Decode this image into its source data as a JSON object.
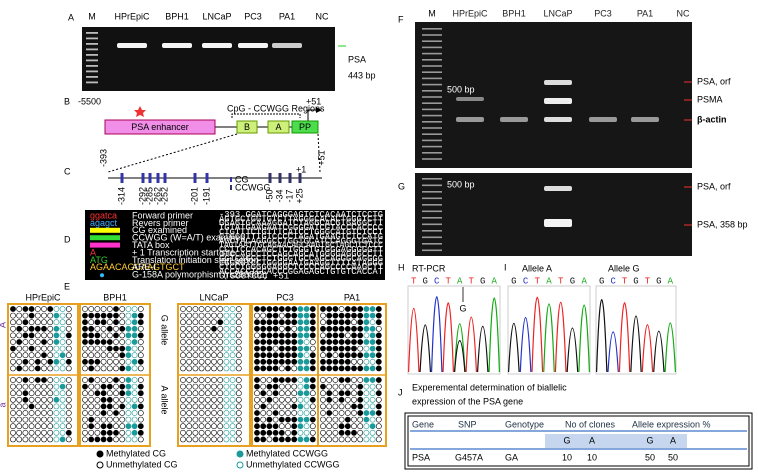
{
  "panel_a": {
    "label": "A",
    "lanes": [
      "M",
      "HPrEpiC",
      "BPH1",
      "LNCaP",
      "PC3",
      "PA1",
      "NC"
    ],
    "band_label": "PSA",
    "band_size": "443 bp"
  },
  "panel_b": {
    "label": "B",
    "start": "-5500",
    "end": "+51",
    "enhancer": "PSA enhancer",
    "regions": "CpG - CCWGG Regions",
    "box_b": "B",
    "box_a": "A",
    "box_pp": "PP"
  },
  "panel_c": {
    "label": "C",
    "start": "-393",
    "tss": "+1",
    "end": "+51",
    "sites": [
      "-314",
      "-292",
      "-285",
      "-262",
      "-252",
      "-201",
      "-191",
      "-50",
      "-34",
      "-17",
      "+25"
    ],
    "legend": [
      "CG",
      "CCWGG"
    ]
  },
  "panel_d": {
    "label": "D",
    "legend": [
      {
        "key": "ggatca",
        "text": "Forward primer"
      },
      {
        "key": "agagct",
        "text": "Revers primer"
      },
      {
        "text": "CG examined"
      },
      {
        "text": "CCWGG (W=A/T) examined"
      },
      {
        "text": "TATA box"
      },
      {
        "key": "A",
        "text": "+ 1 Transcription start site"
      },
      {
        "key": "ATG",
        "text": "Translation initiation start codon"
      },
      {
        "key": "AGAACAGCAAGTGCT",
        "text": "ARE-I"
      },
      {
        "text": "G-158A polymorphism (rs266882)"
      }
    ],
    "sequence": [
      "-393 GGATCAGGGAGTCTCACAATCTCCTG",
      "AGTGCTGGTGTCTTAGGGCACACTGGGTCTT",
      "GGAGTGCAAAGGATCTAGGCACGTGAGGCTT",
      "TGTATGAAGAATCGGGGATCGTACCCACCCC",
      "CTGTTTCTGTTTCATCCTGGGCATGTCTCCT",
      "CTGCCTTTGTCCCCTAGATGAAGTCTCCATG",
      "AGCTACAGGGCCTGGTGCATCCAGGGTGATC",
      "TAGTAATTGCAGAACAGCAAGTGCTAGCTCTCCC",
      "CCTTCCACAGCTCTGGGTGTGGGAGGGGGTT",
      "GTCCAGCCTCCAGCAGCATGGGGAGGGCCTT",
      "GGTCAGCCTCTGGGTGCCAGCAGGGCAGGGG",
      "CGGAGTCCTGGGGAATGAAGGTTTTATAGGG",
      "CTCCTGGGGGAGGCTCCCCAGCCCCAAGCTT",
      "ACCACCTGCACCCGGAGAGCTGTGTCACCAT",
      "GTGGGTCCC +51"
    ]
  },
  "panel_e": {
    "label": "E",
    "groups": [
      "HPrEpiC",
      "BPH1",
      "LNCaP",
      "PC3",
      "PA1"
    ],
    "allele_upper": "A",
    "allele_lower": "a",
    "g_allele": "G allele",
    "a_allele": "A allele",
    "legend": [
      "Methylated CG",
      "Unmethylated CG",
      "Methylated CCWGG",
      "Unmethylated CCWGG"
    ]
  },
  "panel_f": {
    "label": "F",
    "lanes": [
      "M",
      "HPrEpiC",
      "BPH1",
      "LNCaP",
      "PC3",
      "PA1",
      "NC"
    ],
    "marker": "500 bp",
    "bands": [
      "PSA, orf",
      "PSMA",
      "β-actin"
    ]
  },
  "panel_g": {
    "label": "G",
    "marker": "500 bp",
    "bands": [
      "PSA, orf",
      "PSA, 358 bp"
    ]
  },
  "panel_h": {
    "label": "H",
    "title": "RT-PCR",
    "bases": [
      "T",
      "G",
      "C",
      "T",
      "A",
      "T",
      "G",
      "A"
    ],
    "variant": "G"
  },
  "panel_i": {
    "label": "I",
    "allele_a": "Allele A",
    "allele_g": "Allele G",
    "bases_a": [
      "G",
      "C",
      "T",
      "A",
      "T",
      "G",
      "A"
    ],
    "bases_g": [
      "G",
      "C",
      "T",
      "G",
      "T",
      "G",
      "A"
    ]
  },
  "panel_j": {
    "label": "J",
    "title": [
      "Experemental determination of biallelic",
      "expression of the PSA gene"
    ],
    "headers": [
      "Gene",
      "SNP",
      "Genotype",
      "No of clones",
      "Allele expression %"
    ],
    "subheaders": [
      "G",
      "A",
      "G",
      "A"
    ],
    "row": [
      "PSA",
      "G457A",
      "GA",
      "10",
      "10",
      "50",
      "50"
    ]
  }
}
